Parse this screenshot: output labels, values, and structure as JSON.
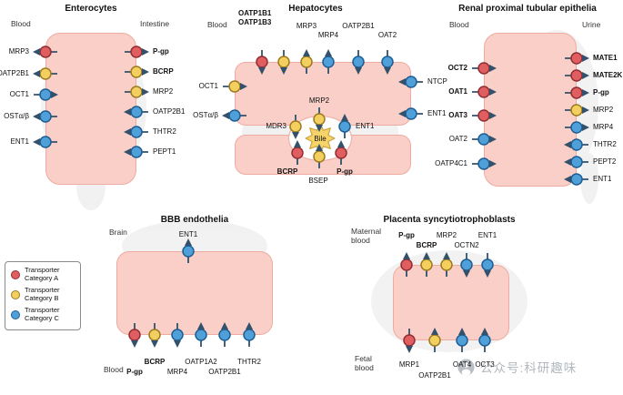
{
  "figure": {
    "panels": {
      "enterocytes": {
        "title": "Enterocytes",
        "compartments": {
          "left": "Blood",
          "right": "Intestine"
        },
        "basolateral": [
          {
            "name": "MRP3",
            "cat": "A",
            "dir": "left"
          },
          {
            "name": "OATP2B1",
            "cat": "B",
            "dir": "left"
          },
          {
            "name": "OCT1",
            "cat": "C",
            "dir": "right"
          },
          {
            "name": "OSTα/β",
            "cat": "C",
            "dir": "left"
          },
          {
            "name": "ENT1",
            "cat": "C",
            "dir": "left"
          }
        ],
        "apical": [
          {
            "name": "P-gp",
            "cat": "A",
            "dir": "right",
            "bold": true
          },
          {
            "name": "BCRP",
            "cat": "B",
            "dir": "right",
            "bold": true
          },
          {
            "name": "MRP2",
            "cat": "B",
            "dir": "right"
          },
          {
            "name": "OATP2B1",
            "cat": "C",
            "dir": "left"
          },
          {
            "name": "THTR2",
            "cat": "C",
            "dir": "left"
          },
          {
            "name": "PEPT1",
            "cat": "C",
            "dir": "left"
          }
        ]
      },
      "hepatocytes": {
        "title": "Hepatocytes",
        "compartments": {
          "left": "Blood",
          "bile": "Bile"
        },
        "sinusoidal_top": [
          {
            "name": "OATP1B1",
            "cat": "A",
            "dir": "down",
            "bold": true
          },
          {
            "name": "OATP1B3",
            "cat": "B",
            "dir": "down",
            "bold": true
          },
          {
            "name": "MRP3",
            "cat": "B",
            "dir": "up"
          },
          {
            "name": "MRP4",
            "cat": "C",
            "dir": "up"
          },
          {
            "name": "OATP2B1",
            "cat": "C",
            "dir": "down"
          },
          {
            "name": "OAT2",
            "cat": "C",
            "dir": "down"
          }
        ],
        "sinusoidal_left": [
          {
            "name": "OCT1",
            "cat": "B",
            "dir": "right"
          },
          {
            "name": "OSTα/β",
            "cat": "C",
            "dir": "left"
          }
        ],
        "sinusoidal_right": [
          {
            "name": "NTCP",
            "cat": "C",
            "dir": "left"
          },
          {
            "name": "ENT1",
            "cat": "C",
            "dir": "left"
          }
        ],
        "canalicular_upper": [
          {
            "name": "MDR3",
            "cat": "B",
            "dir": "down"
          },
          {
            "name": "MRP2",
            "cat": "B",
            "dir": "down"
          },
          {
            "name": "ENT1",
            "cat": "C",
            "dir": "up"
          }
        ],
        "canalicular_lower": [
          {
            "name": "BCRP",
            "cat": "A",
            "dir": "up",
            "bold": true
          },
          {
            "name": "BSEP",
            "cat": "B",
            "dir": "up"
          },
          {
            "name": "P-gp",
            "cat": "A",
            "dir": "up",
            "bold": true
          }
        ]
      },
      "renal": {
        "title": "Renal proximal tubular epithelia",
        "compartments": {
          "left": "Blood",
          "right": "Urine"
        },
        "basolateral": [
          {
            "name": "OCT2",
            "cat": "A",
            "dir": "right",
            "bold": true
          },
          {
            "name": "OAT1",
            "cat": "A",
            "dir": "right",
            "bold": true
          },
          {
            "name": "OAT3",
            "cat": "A",
            "dir": "right",
            "bold": true
          },
          {
            "name": "OAT2",
            "cat": "C",
            "dir": "right"
          },
          {
            "name": "OATP4C1",
            "cat": "C",
            "dir": "right"
          }
        ],
        "apical": [
          {
            "name": "MATE1",
            "cat": "A",
            "dir": "right",
            "bold": true
          },
          {
            "name": "MATE2K",
            "cat": "A",
            "dir": "right",
            "bold": true
          },
          {
            "name": "P-gp",
            "cat": "A",
            "dir": "right",
            "bold": true
          },
          {
            "name": "MRP2",
            "cat": "B",
            "dir": "right"
          },
          {
            "name": "MRP4",
            "cat": "C",
            "dir": "right"
          },
          {
            "name": "THTR2",
            "cat": "C",
            "dir": "left"
          },
          {
            "name": "PEPT2",
            "cat": "C",
            "dir": "left"
          },
          {
            "name": "ENT1",
            "cat": "C",
            "dir": "left"
          }
        ]
      },
      "bbb": {
        "title": "BBB endothelia",
        "compartments": {
          "top": "Brain",
          "bottom": "Blood"
        },
        "brain_side": [
          {
            "name": "ENT1",
            "cat": "C",
            "dir": "up"
          }
        ],
        "blood_side": [
          {
            "name": "P-gp",
            "cat": "A",
            "dir": "down",
            "bold": true
          },
          {
            "name": "BCRP",
            "cat": "B",
            "dir": "down",
            "bold": true
          },
          {
            "name": "MRP4",
            "cat": "C",
            "dir": "down"
          },
          {
            "name": "OATP1A2",
            "cat": "C",
            "dir": "up"
          },
          {
            "name": "OATP2B1",
            "cat": "C",
            "dir": "up"
          },
          {
            "name": "THTR2",
            "cat": "C",
            "dir": "up"
          }
        ]
      },
      "placenta": {
        "title": "Placenta syncytiotrophoblasts",
        "compartments": {
          "top": "Maternal blood",
          "bottom": "Fetal blood"
        },
        "maternal_side": [
          {
            "name": "P-gp",
            "cat": "A",
            "dir": "up",
            "bold": true
          },
          {
            "name": "BCRP",
            "cat": "B",
            "dir": "up",
            "bold": true
          },
          {
            "name": "MRP2",
            "cat": "B",
            "dir": "up"
          },
          {
            "name": "OCTN2",
            "cat": "C",
            "dir": "down"
          },
          {
            "name": "ENT1",
            "cat": "C",
            "dir": "down"
          }
        ],
        "fetal_side": [
          {
            "name": "MRP1",
            "cat": "A",
            "dir": "down"
          },
          {
            "name": "OATP2B1",
            "cat": "B",
            "dir": "up"
          },
          {
            "name": "OAT4",
            "cat": "C",
            "dir": "up"
          },
          {
            "name": "OCT3",
            "cat": "C",
            "dir": "up"
          }
        ]
      }
    },
    "legend": {
      "items": [
        {
          "cat": "A",
          "line1": "Transporter",
          "line2": "Category A"
        },
        {
          "cat": "B",
          "line1": "Transporter",
          "line2": "Category B"
        },
        {
          "cat": "C",
          "line1": "Transporter",
          "line2": "Category C"
        }
      ]
    },
    "colors": {
      "A": {
        "fill": "#e05e5f",
        "stroke": "#8f2e34"
      },
      "B": {
        "fill": "#f2cf5e",
        "stroke": "#9c7a1e"
      },
      "C": {
        "fill": "#4f9fd8",
        "stroke": "#1d5d93"
      }
    },
    "watermark": {
      "text": "公众号:科研趣味"
    }
  }
}
